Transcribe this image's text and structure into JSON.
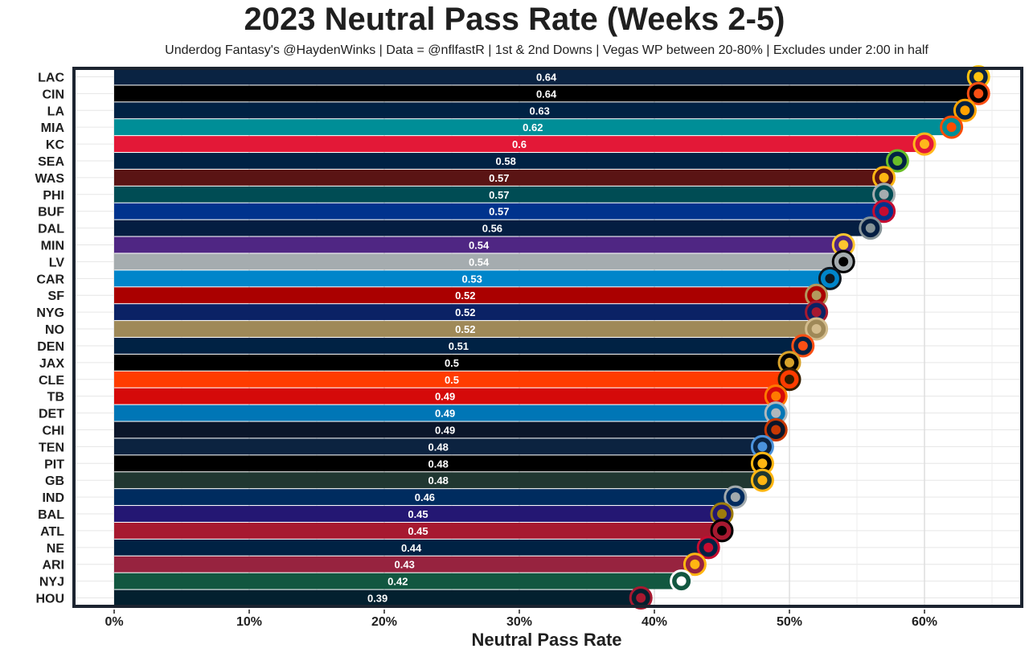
{
  "chart_data": {
    "type": "bar",
    "orientation": "horizontal",
    "title": "2023 Neutral Pass Rate (Weeks 2-5)",
    "subtitle": "Underdog Fantasy's @HaydenWinks | Data = @nflfastR | 1st & 2nd Downs | Vegas WP between 20-80% | Excludes under 2:00 in half",
    "xlabel": "Neutral Pass Rate",
    "ylabel": "",
    "xlim": [
      0,
      0.67
    ],
    "xticks": [
      0,
      0.1,
      0.2,
      0.3,
      0.4,
      0.5,
      0.6
    ],
    "xtick_labels": [
      "0%",
      "10%",
      "20%",
      "30%",
      "40%",
      "50%",
      "60%"
    ],
    "grid": true,
    "categories": [
      "LAC",
      "CIN",
      "LA",
      "MIA",
      "KC",
      "SEA",
      "WAS",
      "PHI",
      "BUF",
      "DAL",
      "MIN",
      "LV",
      "CAR",
      "SF",
      "NYG",
      "NO",
      "DEN",
      "JAX",
      "CLE",
      "TB",
      "DET",
      "CHI",
      "TEN",
      "PIT",
      "GB",
      "IND",
      "BAL",
      "ATL",
      "NE",
      "ARI",
      "NYJ",
      "HOU"
    ],
    "values": [
      0.64,
      0.64,
      0.63,
      0.62,
      0.6,
      0.58,
      0.57,
      0.57,
      0.57,
      0.56,
      0.54,
      0.54,
      0.53,
      0.52,
      0.52,
      0.52,
      0.51,
      0.5,
      0.5,
      0.49,
      0.49,
      0.49,
      0.48,
      0.48,
      0.48,
      0.46,
      0.45,
      0.45,
      0.44,
      0.43,
      0.42,
      0.39
    ],
    "value_labels": [
      "0.64",
      "0.64",
      "0.63",
      "0.62",
      "0.6",
      "0.58",
      "0.57",
      "0.57",
      "0.57",
      "0.56",
      "0.54",
      "0.54",
      "0.53",
      "0.52",
      "0.52",
      "0.52",
      "0.51",
      "0.5",
      "0.5",
      "0.49",
      "0.49",
      "0.49",
      "0.48",
      "0.48",
      "0.48",
      "0.46",
      "0.45",
      "0.45",
      "0.44",
      "0.43",
      "0.42",
      "0.39"
    ],
    "colors": [
      "#0a2342",
      "#000000",
      "#002244",
      "#008e97",
      "#e31837",
      "#002244",
      "#5a1414",
      "#004c54",
      "#00338d",
      "#041e42",
      "#4f2683",
      "#a5acaf",
      "#0085ca",
      "#aa0000",
      "#0b2265",
      "#9f8958",
      "#002244",
      "#000000",
      "#ff3c00",
      "#d50a0a",
      "#0076b6",
      "#0b162a",
      "#0c2340",
      "#000000",
      "#203731",
      "#002c5f",
      "#241773",
      "#a71930",
      "#002244",
      "#97233f",
      "#125740",
      "#03202f"
    ],
    "logo_colors": [
      "#ffc20e",
      "#fb4f14",
      "#ffa300",
      "#fc4c02",
      "#ffb81c",
      "#69be28",
      "#ffb612",
      "#a5acaf",
      "#c60c30",
      "#869397",
      "#ffc62f",
      "#000000",
      "#101820",
      "#b3995d",
      "#a71930",
      "#d3bc8d",
      "#fb4f14",
      "#d7a22a",
      "#311d00",
      "#ff7900",
      "#b0b7bc",
      "#c83803",
      "#4b92db",
      "#ffb612",
      "#ffb612",
      "#a2aaad",
      "#9e7c0c",
      "#000000",
      "#c60c30",
      "#ffb612",
      "#ffffff",
      "#a71930"
    ],
    "legend": "none"
  }
}
